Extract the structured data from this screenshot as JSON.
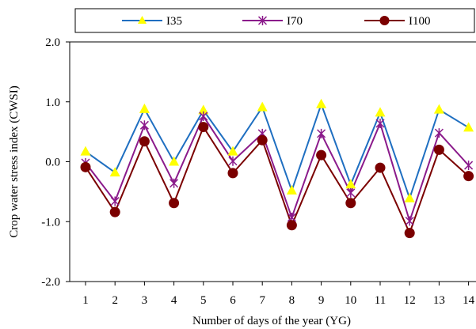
{
  "chart_data": {
    "type": "line",
    "title": "",
    "xlabel": "Number of days of the year (YG)",
    "ylabel": "Crop water stress index (CWSI)",
    "categories": [
      "1",
      "2",
      "3",
      "4",
      "5",
      "6",
      "7",
      "8",
      "9",
      "10",
      "11",
      "12",
      "13",
      "14"
    ],
    "ylim": [
      -2.0,
      2.0
    ],
    "yticks": [
      "-2.0",
      "-1.0",
      "0.0",
      "1.0",
      "2.0"
    ],
    "grid": false,
    "legend_position": "top",
    "series": [
      {
        "name": "I35",
        "line_color": "#1f6fc1",
        "marker": "triangle",
        "marker_color": "#ffff00",
        "values": [
          0.17,
          -0.18,
          0.88,
          0.0,
          0.86,
          0.17,
          0.91,
          -0.48,
          0.96,
          -0.38,
          0.82,
          -0.61,
          0.87,
          0.57
        ]
      },
      {
        "name": "I70",
        "line_color": "#8b1a8b",
        "marker": "asterisk",
        "marker_color": "#8b1a8b",
        "values": [
          -0.02,
          -0.66,
          0.61,
          -0.36,
          0.76,
          0.01,
          0.47,
          -0.93,
          0.47,
          -0.52,
          0.64,
          -0.99,
          0.48,
          -0.06
        ]
      },
      {
        "name": "I100",
        "line_color": "#7b0000",
        "marker": "circle",
        "marker_color": "#7b0000",
        "values": [
          -0.09,
          -0.84,
          0.34,
          -0.69,
          0.58,
          -0.19,
          0.36,
          -1.06,
          0.11,
          -0.69,
          -0.1,
          -1.19,
          0.2,
          -0.24
        ]
      }
    ]
  }
}
